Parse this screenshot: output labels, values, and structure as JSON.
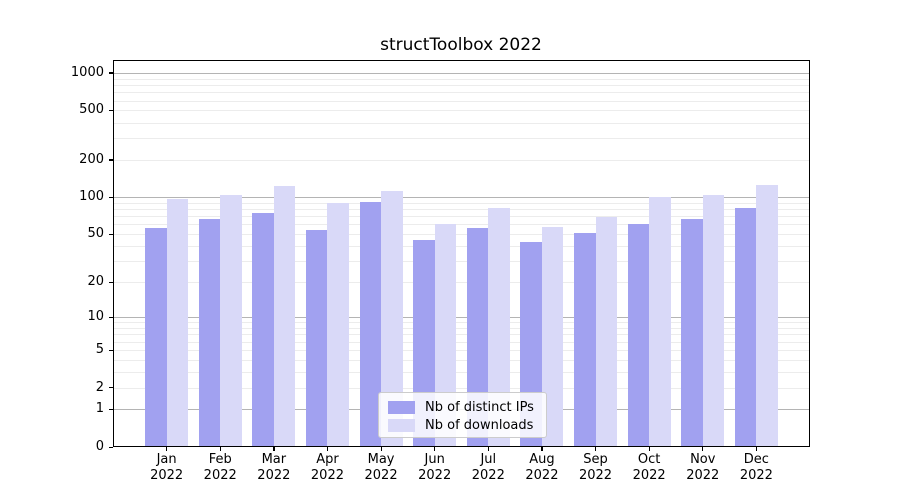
{
  "chart_data": {
    "type": "bar",
    "title": "structToolbox 2022",
    "categories": [
      "Jan",
      "Feb",
      "Mar",
      "Apr",
      "May",
      "Jun",
      "Jul",
      "Aug",
      "Sep",
      "Oct",
      "Nov",
      "Dec"
    ],
    "category_year": "2022",
    "series": [
      {
        "name": "Nb of distinct IPs",
        "color": "#a1a1f0",
        "values": [
          56,
          66,
          74,
          54,
          92,
          45,
          56,
          43,
          51,
          61,
          66,
          81
        ]
      },
      {
        "name": "Nb of downloads",
        "color": "#d9d9f8",
        "values": [
          96,
          105,
          123,
          89,
          112,
          61,
          82,
          57,
          69,
          101,
          104,
          125
        ]
      }
    ],
    "y_axis": {
      "scale": "log10(value+1)",
      "ticks": [
        0,
        1,
        2,
        5,
        10,
        20,
        50,
        100,
        200,
        500,
        1000
      ],
      "range": [
        0,
        1270
      ],
      "major_gridline_values": [
        1,
        10,
        100,
        1000
      ]
    },
    "grid": "horizontal, log minor gridlines",
    "legend_position": "inside bottom-center"
  }
}
